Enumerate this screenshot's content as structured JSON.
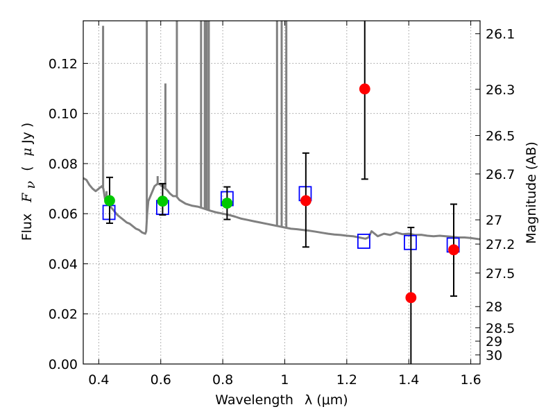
{
  "chart_data": {
    "type": "scatter",
    "title": "",
    "xlabel": "Wavelength",
    "xlabel_math": "λ (μm)",
    "ylabel": "Flux",
    "ylabel_math": "F",
    "ylabel_sub": "ν",
    "ylabel_unit_open": "(",
    "ylabel_unit_mu": "μ",
    "ylabel_unit_rest": "Jy )",
    "y2label": "Magnitude (AB)",
    "xlim": [
      0.35,
      1.63
    ],
    "ylim": [
      0.0,
      0.137
    ],
    "grid": true,
    "x_ticks": [
      {
        "value": 0.4,
        "label": "0.4"
      },
      {
        "value": 0.6,
        "label": "0.6"
      },
      {
        "value": 0.8,
        "label": "0.8"
      },
      {
        "value": 1.0,
        "label": "1"
      },
      {
        "value": 1.2,
        "label": "1.2"
      },
      {
        "value": 1.4,
        "label": "1.4"
      },
      {
        "value": 1.6,
        "label": "1.6"
      }
    ],
    "y_ticks": [
      {
        "value": 0.0,
        "label": "0.00"
      },
      {
        "value": 0.02,
        "label": "0.02"
      },
      {
        "value": 0.04,
        "label": "0.04"
      },
      {
        "value": 0.06,
        "label": "0.06"
      },
      {
        "value": 0.08,
        "label": "0.08"
      },
      {
        "value": 0.1,
        "label": "0.10"
      },
      {
        "value": 0.12,
        "label": "0.12"
      }
    ],
    "y2_ticks": [
      {
        "mag": 26.1,
        "label": "26.1"
      },
      {
        "mag": 26.3,
        "label": "26.3"
      },
      {
        "mag": 26.5,
        "label": "26.5"
      },
      {
        "mag": 26.7,
        "label": "26.7"
      },
      {
        "mag": 27.0,
        "label": "27"
      },
      {
        "mag": 27.2,
        "label": "27.2"
      },
      {
        "mag": 27.5,
        "label": "27.5"
      },
      {
        "mag": 28.0,
        "label": "28"
      },
      {
        "mag": 28.5,
        "label": "28.5"
      },
      {
        "mag": 29.0,
        "label": "29"
      },
      {
        "mag": 30.0,
        "label": "30"
      }
    ],
    "model_spectrum": {
      "color": "#808080",
      "x": [
        0.35,
        0.36,
        0.37,
        0.38,
        0.39,
        0.4,
        0.41,
        0.415,
        0.42,
        0.43,
        0.44,
        0.45,
        0.46,
        0.47,
        0.48,
        0.49,
        0.5,
        0.51,
        0.52,
        0.53,
        0.54,
        0.55,
        0.553,
        0.556,
        0.56,
        0.57,
        0.58,
        0.59,
        0.6,
        0.61,
        0.62,
        0.63,
        0.64,
        0.65,
        0.66,
        0.68,
        0.7,
        0.72,
        0.74,
        0.76,
        0.78,
        0.8,
        0.82,
        0.84,
        0.86,
        0.88,
        0.9,
        0.92,
        0.94,
        0.96,
        0.98,
        1.0,
        1.02,
        1.04,
        1.06,
        1.08,
        1.1,
        1.12,
        1.14,
        1.16,
        1.18,
        1.2,
        1.22,
        1.24,
        1.26,
        1.27,
        1.28,
        1.3,
        1.32,
        1.34,
        1.36,
        1.38,
        1.4,
        1.42,
        1.44,
        1.46,
        1.48,
        1.5,
        1.52,
        1.54,
        1.56,
        1.58,
        1.6,
        1.63
      ],
      "y": [
        0.0742,
        0.0735,
        0.0715,
        0.07,
        0.069,
        0.07,
        0.071,
        0.07,
        0.066,
        0.064,
        0.0625,
        0.061,
        0.0595,
        0.0585,
        0.0575,
        0.0565,
        0.056,
        0.055,
        0.054,
        0.0535,
        0.0525,
        0.052,
        0.053,
        0.06,
        0.065,
        0.068,
        0.071,
        0.072,
        0.0715,
        0.0705,
        0.0695,
        0.068,
        0.067,
        0.067,
        0.0655,
        0.064,
        0.0632,
        0.0628,
        0.062,
        0.0612,
        0.0605,
        0.06,
        0.0595,
        0.0588,
        0.058,
        0.0575,
        0.057,
        0.0565,
        0.056,
        0.0555,
        0.055,
        0.0545,
        0.054,
        0.0538,
        0.0535,
        0.0532,
        0.0528,
        0.0524,
        0.052,
        0.0517,
        0.0515,
        0.0512,
        0.051,
        0.0505,
        0.05,
        0.0505,
        0.053,
        0.051,
        0.052,
        0.0515,
        0.0525,
        0.0518,
        0.052,
        0.0515,
        0.0516,
        0.0512,
        0.051,
        0.0512,
        0.051,
        0.0508,
        0.0505,
        0.0505,
        0.0503,
        0.0498
      ],
      "emission_lines": [
        {
          "x": 0.414,
          "y": 0.135
        },
        {
          "x": 0.425,
          "y": 0.069
        },
        {
          "x": 0.555,
          "y": 0.14
        },
        {
          "x": 0.59,
          "y": 0.075
        },
        {
          "x": 0.608,
          "y": 0.072
        },
        {
          "x": 0.615,
          "y": 0.112
        },
        {
          "x": 0.652,
          "y": 0.14
        },
        {
          "x": 0.73,
          "y": 0.14
        },
        {
          "x": 0.742,
          "y": 0.14
        },
        {
          "x": 0.748,
          "y": 0.14
        },
        {
          "x": 0.755,
          "y": 0.14
        },
        {
          "x": 0.975,
          "y": 0.14
        },
        {
          "x": 0.99,
          "y": 0.14
        },
        {
          "x": 1.005,
          "y": 0.14
        }
      ]
    },
    "series": [
      {
        "marker": "square",
        "color": "#0000ff",
        "points": [
          {
            "x": 0.433,
            "y": 0.0605
          },
          {
            "x": 0.606,
            "y": 0.0625
          },
          {
            "x": 0.814,
            "y": 0.066
          },
          {
            "x": 1.066,
            "y": 0.068
          },
          {
            "x": 1.255,
            "y": 0.049
          },
          {
            "x": 1.405,
            "y": 0.0485
          },
          {
            "x": 1.543,
            "y": 0.0475
          }
        ]
      },
      {
        "marker": "circle",
        "color": "#00c800",
        "points": [
          {
            "x": 0.435,
            "y": 0.0652,
            "err_lo": 0.009,
            "err_hi": 0.0093
          },
          {
            "x": 0.606,
            "y": 0.065,
            "err_lo": 0.0055,
            "err_hi": 0.007
          },
          {
            "x": 0.814,
            "y": 0.0642,
            "err_lo": 0.0065,
            "err_hi": 0.0065
          }
        ]
      },
      {
        "marker": "circle",
        "color": "#ff0000",
        "points": [
          {
            "x": 1.068,
            "y": 0.0652,
            "err_lo": 0.0185,
            "err_hi": 0.019
          },
          {
            "x": 1.258,
            "y": 0.1098,
            "err_lo": 0.036,
            "err_hi": 0.03
          },
          {
            "x": 1.407,
            "y": 0.0265,
            "err_lo": 0.03,
            "err_hi": 0.028
          },
          {
            "x": 1.545,
            "y": 0.0456,
            "err_lo": 0.0185,
            "err_hi": 0.0182
          }
        ]
      }
    ]
  }
}
